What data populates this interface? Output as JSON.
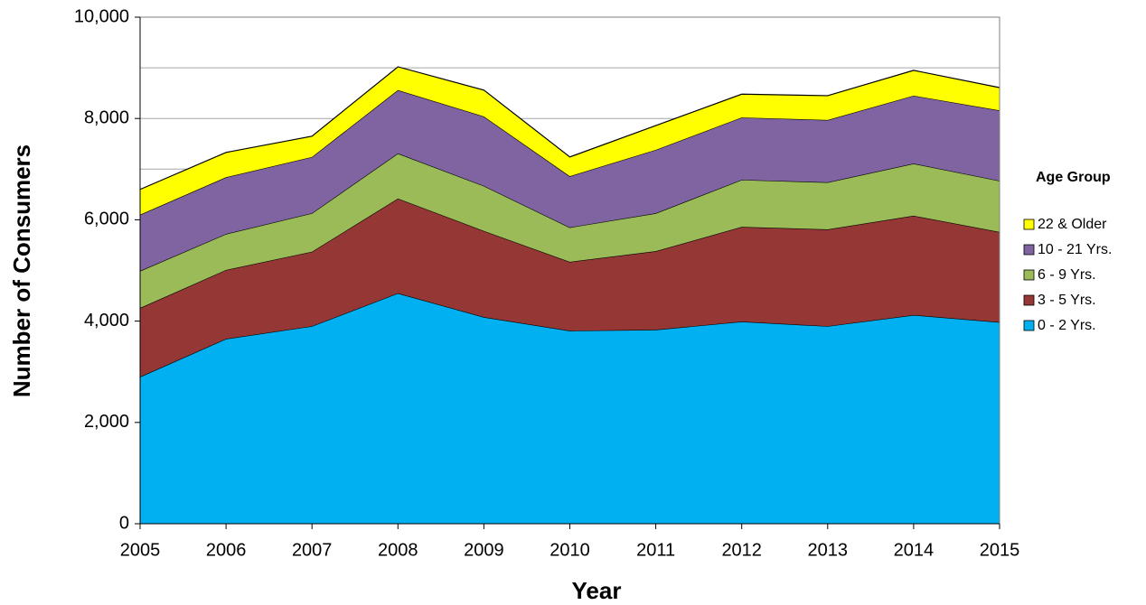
{
  "chart_data": {
    "type": "stacked_area",
    "x_label": "Year",
    "y_label": "Number of Consumers",
    "x": [
      2005,
      2006,
      2007,
      2008,
      2009,
      2010,
      2011,
      2012,
      2013,
      2014,
      2015
    ],
    "xlim": [
      2005,
      2015
    ],
    "xticks": [
      2005,
      2006,
      2007,
      2008,
      2009,
      2010,
      2011,
      2012,
      2013,
      2014,
      2015
    ],
    "ylim": [
      0,
      10000
    ],
    "yticks": [
      0,
      {
        "value": 2000,
        "label": "2,000"
      },
      {
        "value": 4000,
        "label": "4,000"
      },
      {
        "value": 6000,
        "label": "6,000"
      },
      {
        "value": 8000,
        "label": "8,000"
      },
      {
        "value": 10000,
        "label": "10,000"
      }
    ],
    "grid_lines": [
      1000,
      2000,
      3000,
      4000,
      5000,
      6000,
      7000,
      8000,
      9000
    ],
    "legend_title": "Age Group",
    "legend_position": "right",
    "series": [
      {
        "name": "0 - 2 Yrs.",
        "color": "#00b0f0",
        "values": [
          2900,
          3650,
          3900,
          4550,
          4080,
          3810,
          3830,
          3990,
          3900,
          4120,
          3980
        ]
      },
      {
        "name": "3 - 5 Yrs.",
        "color": "#953735",
        "values": [
          1360,
          1360,
          1470,
          1870,
          1700,
          1360,
          1550,
          1870,
          1910,
          1960,
          1780
        ]
      },
      {
        "name": "6 - 9 Yrs.",
        "color": "#9bbb59",
        "values": [
          730,
          710,
          760,
          890,
          890,
          680,
          750,
          930,
          930,
          1030,
          1010
        ]
      },
      {
        "name": "10 - 21 Yrs.",
        "color": "#8064a2",
        "values": [
          1110,
          1120,
          1110,
          1250,
          1370,
          1010,
          1250,
          1230,
          1230,
          1340,
          1390
        ]
      },
      {
        "name": "22 & Older",
        "color": "#ffff00",
        "values": [
          500,
          490,
          410,
          460,
          520,
          380,
          480,
          460,
          480,
          500,
          450
        ]
      }
    ]
  }
}
